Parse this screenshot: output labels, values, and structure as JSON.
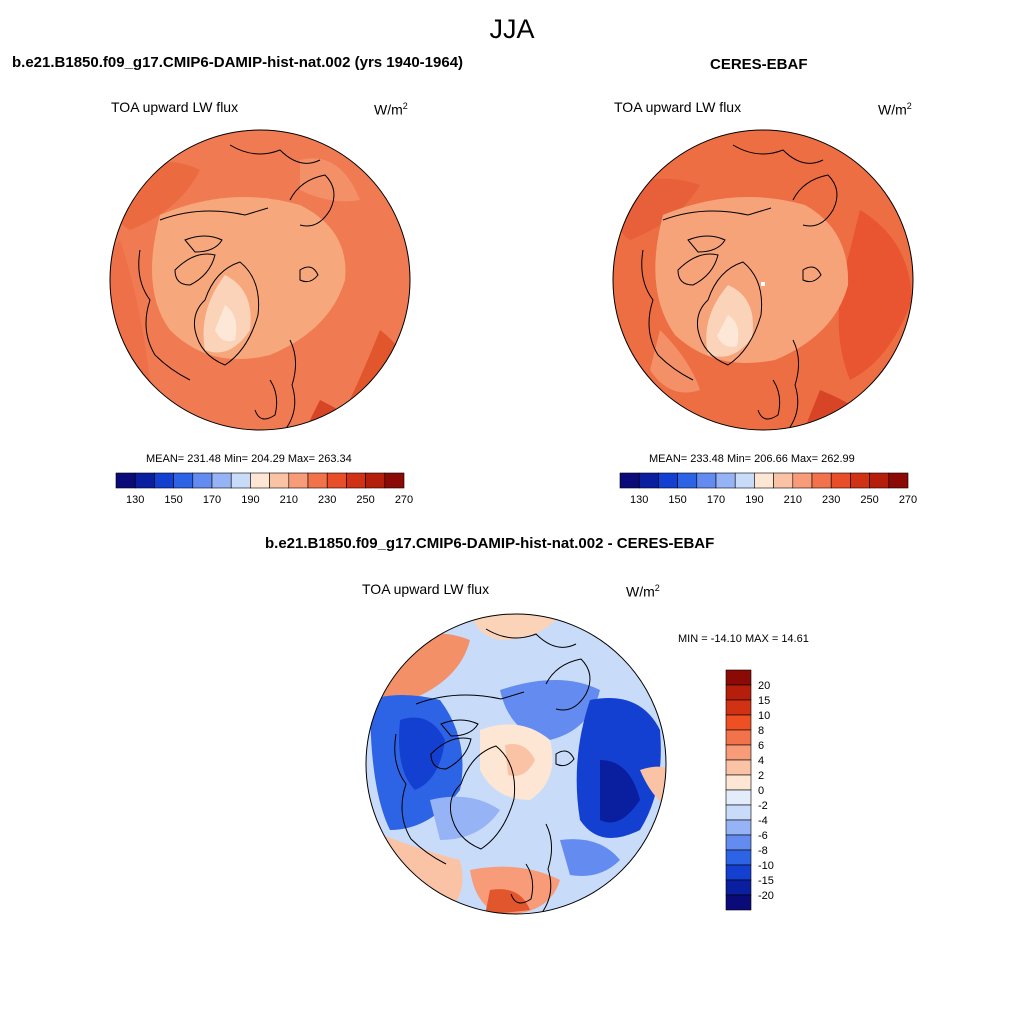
{
  "season": "JJA",
  "left_panel": {
    "title": "b.e21.B1850.f09_g17.CMIP6-DAMIP-hist-nat.002 (yrs 1940-1964)",
    "variable": "TOA upward LW flux",
    "units_base": "W/m",
    "units_exp": "2",
    "stats": "MEAN= 231.48  Min= 204.29  Max= 263.34"
  },
  "right_panel": {
    "title": "CERES-EBAF",
    "variable": "TOA upward LW flux",
    "units_base": "W/m",
    "units_exp": "2",
    "stats": "MEAN= 233.48  Min= 206.66  Max= 262.99"
  },
  "diff_panel": {
    "title": "b.e21.B1850.f09_g17.CMIP6-DAMIP-hist-nat.002 - CERES-EBAF",
    "variable": "TOA upward LW flux",
    "units_base": "W/m",
    "units_exp": "2",
    "stats": "MIN = -14.10 MAX =  14.61"
  },
  "colorbar_main": {
    "tick_labels": [
      "130",
      "150",
      "170",
      "190",
      "210",
      "230",
      "250",
      "270"
    ],
    "colors": [
      "#0a0a78",
      "#0a1ea0",
      "#1440d2",
      "#2d64e6",
      "#648cf0",
      "#96b4f5",
      "#c8dcfa",
      "#fde6d4",
      "#fac3a5",
      "#f79b78",
      "#f2734b",
      "#e84f28",
      "#d23214",
      "#b41e0a",
      "#8c0a05"
    ]
  },
  "colorbar_diff": {
    "tick_labels": [
      "20",
      "15",
      "10",
      "8",
      "6",
      "4",
      "2",
      "0",
      "-2",
      "-4",
      "-6",
      "-8",
      "-10",
      "-15",
      "-20"
    ],
    "colors": [
      "#8c0a05",
      "#b41e0a",
      "#d23214",
      "#ee5024",
      "#f2734b",
      "#f79b78",
      "#fac3a5",
      "#fde6d4",
      "#e2ecfa",
      "#c8dcfa",
      "#96b4f5",
      "#648cf0",
      "#2d64e6",
      "#1440d2",
      "#0a1ea0",
      "#0a0a78"
    ]
  }
}
